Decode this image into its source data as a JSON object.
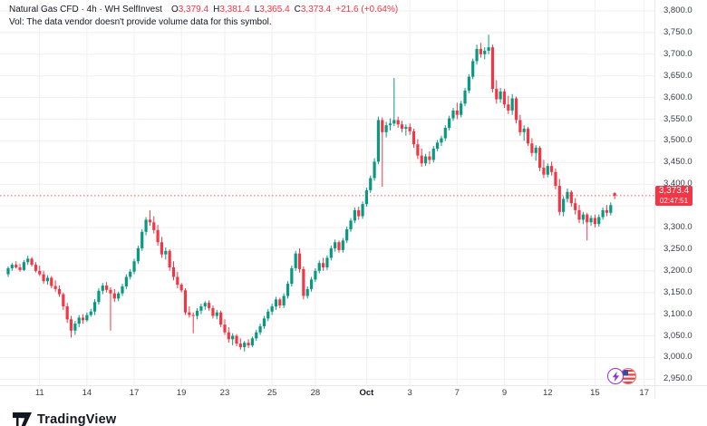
{
  "header": {
    "title": "Natural Gas CFD · 4h · WH SelfInvest",
    "ohlc": [
      {
        "label": "O",
        "value": "3,379.4"
      },
      {
        "label": "H",
        "value": "3,381.4"
      },
      {
        "label": "L",
        "value": "3,365.4"
      },
      {
        "label": "C",
        "value": "3,373.4"
      }
    ],
    "change": "+21.6 (+0.64%)",
    "vol_note": "Vol: The data vendor doesn't provide volume data for this symbol."
  },
  "price_label": {
    "price": "3,373.4",
    "countdown": "02:47:51"
  },
  "colors": {
    "up": "#089981",
    "down": "#f23645",
    "grid": "#f3eef0",
    "current_line": "#f23645",
    "axis_text": "#363a45",
    "header_text": "#131722"
  },
  "y_axis": {
    "labels": [
      "3,800.0",
      "3,750.0",
      "3,700.0",
      "3,650.0",
      "3,600.0",
      "3,550.0",
      "3,500.0",
      "3,450.0",
      "3,400.0",
      "3,300.0",
      "3,250.0",
      "3,200.0",
      "3,150.0",
      "3,100.0",
      "3,050.0",
      "3,000.0",
      "2,950.0"
    ],
    "values": [
      3800,
      3750,
      3700,
      3650,
      3600,
      3550,
      3500,
      3450,
      3400,
      3300,
      3250,
      3200,
      3150,
      3100,
      3050,
      3000,
      2950
    ]
  },
  "x_axis": {
    "labels": [
      {
        "text": "11",
        "index": 8
      },
      {
        "text": "14",
        "index": 20
      },
      {
        "text": "17",
        "index": 32
      },
      {
        "text": "19",
        "index": 44
      },
      {
        "text": "23",
        "index": 55
      },
      {
        "text": "25",
        "index": 67
      },
      {
        "text": "28",
        "index": 78
      },
      {
        "text": "Oct",
        "index": 91,
        "bold": true
      },
      {
        "text": "3",
        "index": 102
      },
      {
        "text": "7",
        "index": 114
      },
      {
        "text": "9",
        "index": 126
      },
      {
        "text": "12",
        "index": 137
      },
      {
        "text": "15",
        "index": 149
      },
      {
        "text": "17",
        "index": 161.5
      }
    ]
  },
  "chart_data": {
    "type": "candlestick",
    "title": "Natural Gas CFD 4h candles, Sep 10 - Oct 16",
    "ylim": [
      2950,
      3800
    ],
    "grid": true,
    "current_price": 3373.4,
    "gridline_prices": [
      3800,
      3750,
      3700,
      3650,
      3600,
      3550,
      3500,
      3450,
      3400,
      3350,
      3300,
      3250,
      3200,
      3150,
      3100,
      3050,
      3000,
      2950
    ],
    "candles_format": [
      "open",
      "high",
      "low",
      "close"
    ],
    "candles": [
      [
        3192,
        3210,
        3186,
        3206
      ],
      [
        3206,
        3218,
        3200,
        3214
      ],
      [
        3214,
        3222,
        3205,
        3208
      ],
      [
        3208,
        3216,
        3198,
        3202
      ],
      [
        3202,
        3225,
        3200,
        3220
      ],
      [
        3220,
        3235,
        3214,
        3228
      ],
      [
        3228,
        3232,
        3210,
        3214
      ],
      [
        3214,
        3220,
        3196,
        3200
      ],
      [
        3200,
        3212,
        3188,
        3192
      ],
      [
        3192,
        3200,
        3170,
        3176
      ],
      [
        3176,
        3190,
        3168,
        3184
      ],
      [
        3184,
        3188,
        3160,
        3165
      ],
      [
        3165,
        3178,
        3152,
        3158
      ],
      [
        3158,
        3166,
        3140,
        3146
      ],
      [
        3146,
        3150,
        3110,
        3118
      ],
      [
        3118,
        3126,
        3080,
        3088
      ],
      [
        3088,
        3096,
        3046,
        3062
      ],
      [
        3062,
        3084,
        3052,
        3078
      ],
      [
        3078,
        3098,
        3070,
        3092
      ],
      [
        3092,
        3100,
        3078,
        3086
      ],
      [
        3086,
        3104,
        3082,
        3098
      ],
      [
        3098,
        3112,
        3094,
        3106
      ],
      [
        3106,
        3135,
        3098,
        3128
      ],
      [
        3128,
        3160,
        3122,
        3154
      ],
      [
        3154,
        3172,
        3146,
        3166
      ],
      [
        3166,
        3174,
        3150,
        3156
      ],
      [
        3156,
        3162,
        3062,
        3148
      ],
      [
        3148,
        3158,
        3128,
        3136
      ],
      [
        3136,
        3152,
        3130,
        3148
      ],
      [
        3148,
        3170,
        3142,
        3164
      ],
      [
        3164,
        3192,
        3158,
        3186
      ],
      [
        3186,
        3204,
        3180,
        3198
      ],
      [
        3198,
        3228,
        3192,
        3222
      ],
      [
        3222,
        3258,
        3216,
        3252
      ],
      [
        3252,
        3296,
        3246,
        3290
      ],
      [
        3290,
        3324,
        3282,
        3318
      ],
      [
        3318,
        3340,
        3304,
        3312
      ],
      [
        3312,
        3326,
        3286,
        3294
      ],
      [
        3294,
        3306,
        3258,
        3266
      ],
      [
        3266,
        3278,
        3230,
        3238
      ],
      [
        3238,
        3254,
        3226,
        3246
      ],
      [
        3246,
        3250,
        3200,
        3208
      ],
      [
        3208,
        3222,
        3178,
        3186
      ],
      [
        3186,
        3198,
        3160,
        3168
      ],
      [
        3168,
        3172,
        3150,
        3155
      ],
      [
        3155,
        3160,
        3098,
        3104
      ],
      [
        3104,
        3118,
        3092,
        3098
      ],
      [
        3098,
        3104,
        3056,
        3096
      ],
      [
        3096,
        3114,
        3088,
        3108
      ],
      [
        3108,
        3124,
        3100,
        3118
      ],
      [
        3118,
        3130,
        3110,
        3126
      ],
      [
        3126,
        3132,
        3108,
        3114
      ],
      [
        3114,
        3120,
        3090,
        3096
      ],
      [
        3096,
        3110,
        3088,
        3104
      ],
      [
        3104,
        3108,
        3070,
        3076
      ],
      [
        3076,
        3088,
        3052,
        3058
      ],
      [
        3058,
        3070,
        3034,
        3042
      ],
      [
        3042,
        3056,
        3028,
        3050
      ],
      [
        3050,
        3054,
        3026,
        3032
      ],
      [
        3032,
        3044,
        3018,
        3024
      ],
      [
        3024,
        3038,
        3014,
        3034
      ],
      [
        3034,
        3042,
        3022,
        3028
      ],
      [
        3028,
        3048,
        3024,
        3044
      ],
      [
        3044,
        3064,
        3038,
        3058
      ],
      [
        3058,
        3078,
        3052,
        3072
      ],
      [
        3072,
        3096,
        3066,
        3090
      ],
      [
        3090,
        3112,
        3084,
        3106
      ],
      [
        3106,
        3124,
        3098,
        3118
      ],
      [
        3118,
        3140,
        3110,
        3134
      ],
      [
        3134,
        3138,
        3114,
        3120
      ],
      [
        3120,
        3148,
        3114,
        3142
      ],
      [
        3142,
        3176,
        3136,
        3170
      ],
      [
        3170,
        3212,
        3164,
        3206
      ],
      [
        3206,
        3246,
        3200,
        3240
      ],
      [
        3240,
        3252,
        3196,
        3204
      ],
      [
        3204,
        3210,
        3134,
        3142
      ],
      [
        3142,
        3164,
        3136,
        3158
      ],
      [
        3158,
        3186,
        3152,
        3180
      ],
      [
        3180,
        3206,
        3174,
        3200
      ],
      [
        3200,
        3224,
        3194,
        3218
      ],
      [
        3218,
        3230,
        3200,
        3208
      ],
      [
        3208,
        3236,
        3202,
        3230
      ],
      [
        3230,
        3258,
        3224,
        3252
      ],
      [
        3252,
        3272,
        3244,
        3266
      ],
      [
        3266,
        3270,
        3242,
        3248
      ],
      [
        3248,
        3276,
        3242,
        3270
      ],
      [
        3270,
        3302,
        3264,
        3296
      ],
      [
        3296,
        3322,
        3290,
        3316
      ],
      [
        3316,
        3346,
        3310,
        3340
      ],
      [
        3340,
        3348,
        3318,
        3326
      ],
      [
        3326,
        3360,
        3320,
        3354
      ],
      [
        3354,
        3392,
        3348,
        3386
      ],
      [
        3386,
        3420,
        3380,
        3414
      ],
      [
        3414,
        3460,
        3408,
        3452
      ],
      [
        3452,
        3556,
        3446,
        3548
      ],
      [
        3548,
        3554,
        3394,
        3520
      ],
      [
        3520,
        3544,
        3508,
        3536
      ],
      [
        3536,
        3552,
        3524,
        3540
      ],
      [
        3540,
        3645,
        3534,
        3548
      ],
      [
        3548,
        3556,
        3530,
        3538
      ],
      [
        3538,
        3546,
        3520,
        3528
      ],
      [
        3528,
        3538,
        3512,
        3532
      ],
      [
        3532,
        3540,
        3514,
        3522
      ],
      [
        3522,
        3528,
        3484,
        3492
      ],
      [
        3492,
        3504,
        3458,
        3466
      ],
      [
        3466,
        3482,
        3440,
        3448
      ],
      [
        3448,
        3470,
        3442,
        3464
      ],
      [
        3464,
        3476,
        3446,
        3456
      ],
      [
        3456,
        3488,
        3450,
        3482
      ],
      [
        3482,
        3502,
        3476,
        3496
      ],
      [
        3496,
        3512,
        3488,
        3506
      ],
      [
        3506,
        3536,
        3500,
        3530
      ],
      [
        3530,
        3558,
        3524,
        3552
      ],
      [
        3552,
        3576,
        3546,
        3570
      ],
      [
        3570,
        3588,
        3550,
        3560
      ],
      [
        3560,
        3592,
        3554,
        3586
      ],
      [
        3586,
        3622,
        3580,
        3616
      ],
      [
        3616,
        3654,
        3610,
        3648
      ],
      [
        3648,
        3690,
        3642,
        3684
      ],
      [
        3684,
        3722,
        3676,
        3712
      ],
      [
        3712,
        3726,
        3692,
        3700
      ],
      [
        3700,
        3716,
        3688,
        3708
      ],
      [
        3708,
        3745,
        3700,
        3716
      ],
      [
        3716,
        3722,
        3612,
        3620
      ],
      [
        3620,
        3640,
        3586,
        3596
      ],
      [
        3596,
        3622,
        3588,
        3614
      ],
      [
        3614,
        3620,
        3576,
        3584
      ],
      [
        3584,
        3604,
        3562,
        3570
      ],
      [
        3570,
        3608,
        3560,
        3598
      ],
      [
        3598,
        3602,
        3540,
        3548
      ],
      [
        3548,
        3560,
        3512,
        3520
      ],
      [
        3520,
        3536,
        3500,
        3528
      ],
      [
        3528,
        3532,
        3488,
        3494
      ],
      [
        3494,
        3506,
        3464,
        3472
      ],
      [
        3472,
        3490,
        3454,
        3484
      ],
      [
        3484,
        3488,
        3430,
        3438
      ],
      [
        3438,
        3456,
        3414,
        3422
      ],
      [
        3422,
        3448,
        3416,
        3442
      ],
      [
        3442,
        3452,
        3420,
        3428
      ],
      [
        3428,
        3436,
        3388,
        3396
      ],
      [
        3396,
        3412,
        3328,
        3336
      ],
      [
        3336,
        3372,
        3326,
        3366
      ],
      [
        3366,
        3390,
        3358,
        3382
      ],
      [
        3382,
        3386,
        3348,
        3356
      ],
      [
        3356,
        3368,
        3330,
        3340
      ],
      [
        3340,
        3352,
        3310,
        3318
      ],
      [
        3318,
        3336,
        3308,
        3330
      ],
      [
        3330,
        3334,
        3270,
        3312
      ],
      [
        3312,
        3328,
        3304,
        3322
      ],
      [
        3322,
        3330,
        3300,
        3308
      ],
      [
        3308,
        3330,
        3302,
        3324
      ],
      [
        3324,
        3346,
        3318,
        3340
      ],
      [
        3340,
        3352,
        3326,
        3334
      ],
      [
        3334,
        3358,
        3328,
        3351.8
      ],
      [
        3379.4,
        3381.4,
        3365.4,
        3373.4
      ]
    ]
  },
  "footer": {
    "logo_text": "TradingView"
  },
  "badges": [
    {
      "name": "lightning-realtime-badge",
      "glyph": "⚡"
    },
    {
      "name": "us-flag-badge"
    }
  ]
}
